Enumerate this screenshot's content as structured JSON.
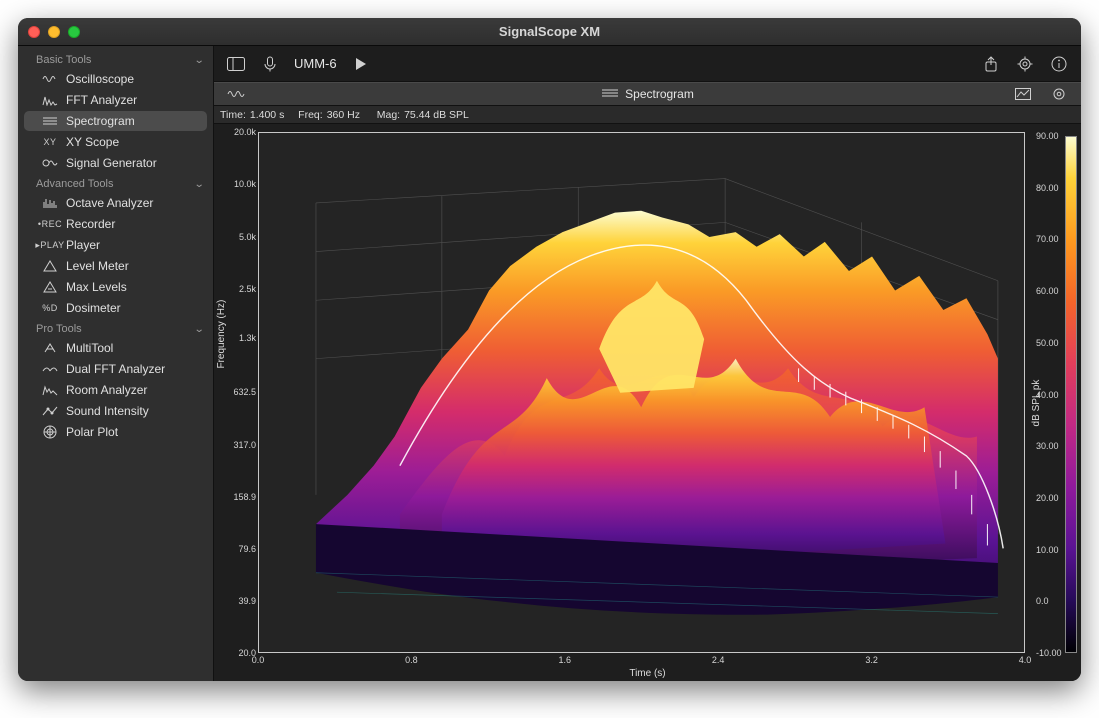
{
  "window": {
    "title": "SignalScope XM"
  },
  "colors": {
    "bg": "#1d1d1d",
    "sidebar_bg": "#2f2f2f",
    "selected_bg": "#4c4c4c",
    "plot_bg": "#242424",
    "plot_border": "#c8c8c8",
    "text": "#e0e0e0",
    "muted": "#9b9b9b"
  },
  "sidebar": {
    "sections": [
      {
        "label": "Basic Tools",
        "items": [
          {
            "icon": "oscilloscope",
            "label": "Oscilloscope"
          },
          {
            "icon": "fft",
            "label": "FFT Analyzer"
          },
          {
            "icon": "spectrogram",
            "label": "Spectrogram",
            "selected": true
          },
          {
            "icon": "xy",
            "label": "XY Scope"
          },
          {
            "icon": "siggen",
            "label": "Signal Generator"
          }
        ]
      },
      {
        "label": "Advanced Tools",
        "items": [
          {
            "icon": "octave",
            "label": "Octave Analyzer"
          },
          {
            "icon": "rec",
            "label": "Recorder"
          },
          {
            "icon": "play",
            "label": "Player"
          },
          {
            "icon": "level",
            "label": "Level Meter"
          },
          {
            "icon": "maxlev",
            "label": "Max Levels"
          },
          {
            "icon": "dosi",
            "label": "Dosimeter"
          }
        ]
      },
      {
        "label": "Pro Tools",
        "items": [
          {
            "icon": "multi",
            "label": "MultiTool"
          },
          {
            "icon": "dualfft",
            "label": "Dual FFT Analyzer"
          },
          {
            "icon": "room",
            "label": "Room Analyzer"
          },
          {
            "icon": "intensity",
            "label": "Sound Intensity"
          },
          {
            "icon": "polar",
            "label": "Polar Plot"
          }
        ]
      }
    ]
  },
  "toolbar": {
    "device": "UMM-6"
  },
  "view": {
    "title": "Spectrogram"
  },
  "info": {
    "time_label": "Time:",
    "time_value": "1.400 s",
    "freq_label": "Freq:",
    "freq_value": "360 Hz",
    "mag_label": "Mag:",
    "mag_value": "75.44 dB SPL"
  },
  "chart": {
    "type": "3d-spectrogram-surface",
    "x_axis": {
      "label": "Time (s)",
      "min": 0.0,
      "max": 4.0,
      "ticks": [
        0.0,
        0.8,
        1.6,
        2.4,
        3.2,
        4.0
      ],
      "tick_labels": [
        "0.0",
        "0.8",
        "1.6",
        "2.4",
        "3.2",
        "4.0"
      ],
      "fontsize": 9
    },
    "y_axis": {
      "label": "Frequency (Hz)",
      "scale": "log",
      "min": 20.0,
      "max": 20000,
      "ticks": [
        20.0,
        39.9,
        79.6,
        158.9,
        317.0,
        632.5,
        1300,
        2500,
        5000,
        10000,
        20000
      ],
      "tick_labels": [
        "20.0",
        "39.9",
        "79.6",
        "158.9",
        "317.0",
        "632.5",
        "1.3k",
        "2.5k",
        "5.0k",
        "10.0k",
        "20.0k"
      ],
      "fontsize": 9
    },
    "colorbar": {
      "label": "dB SPL pk",
      "min": -10.0,
      "max": 90.0,
      "ticks": [
        -10.0,
        0.0,
        10.0,
        20.0,
        30.0,
        40.0,
        50.0,
        60.0,
        70.0,
        80.0,
        90.0
      ],
      "tick_labels": [
        "-10.00",
        "0.0",
        "10.00",
        "20.00",
        "30.00",
        "40.00",
        "50.00",
        "60.00",
        "70.00",
        "80.00",
        "90.00"
      ],
      "gradient_colors": [
        "#fcfccf",
        "#ffd33a",
        "#ff9a1f",
        "#f4652a",
        "#e23e5b",
        "#c12984",
        "#8f1a9c",
        "#5a1393",
        "#260b58",
        "#000004"
      ],
      "fontsize": 9
    },
    "surface": {
      "colormap_low": "#260b58",
      "colormap_mid": "#e23e5b",
      "colormap_high": "#fcfccf",
      "cursor_highlight_color": "#ffffff",
      "grid_color": "#7a7a7a"
    }
  }
}
